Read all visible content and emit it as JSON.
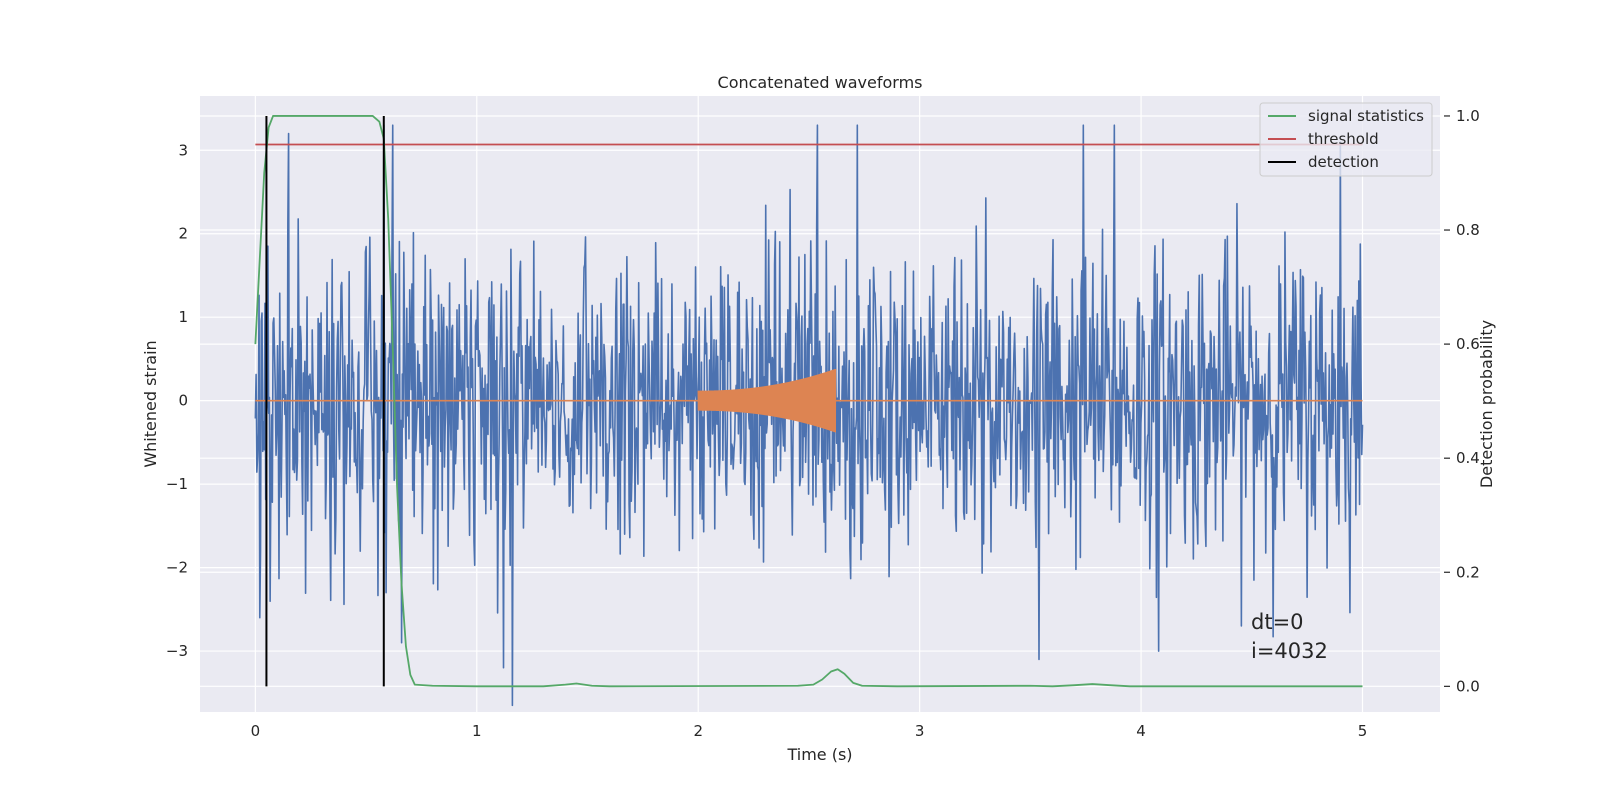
{
  "chart_data": {
    "type": "line",
    "title": "Concatenated waveforms",
    "xlabel": "Time (s)",
    "ylabel_left": "Whitened strain",
    "ylabel_right": "Detection probability",
    "xlim": [
      -0.25,
      5.35
    ],
    "ylim_left": [
      -3.73,
      3.65
    ],
    "ylim_right": [
      -0.045,
      1.035
    ],
    "xticks": [
      0,
      1,
      2,
      3,
      4,
      5
    ],
    "xtick_labels": [
      "0",
      "1",
      "2",
      "3",
      "4",
      "5"
    ],
    "yticks_left": [
      -3,
      -2,
      -1,
      0,
      1,
      2,
      3
    ],
    "ytick_labels_left": [
      "−3",
      "−2",
      "−1",
      "0",
      "1",
      "2",
      "3"
    ],
    "yticks_right": [
      0.0,
      0.2,
      0.4,
      0.6,
      0.8,
      1.0
    ],
    "ytick_labels_right": [
      "0.0",
      "0.2",
      "0.4",
      "0.6",
      "0.8",
      "1.0"
    ],
    "grid": true,
    "legend_position": "top-right",
    "legend": [
      {
        "label": "signal statistics",
        "color": "#55a868",
        "type": "line"
      },
      {
        "label": "threshold",
        "color": "#c44e52",
        "type": "line"
      },
      {
        "label": "detection",
        "color": "#000000",
        "type": "line"
      }
    ],
    "colors": {
      "noise": "#4c72b0",
      "waveform": "#dd8452",
      "signal_statistics": "#55a868",
      "threshold": "#c44e52",
      "detection": "#000000",
      "background": "#eaeaf2",
      "grid": "#ffffff"
    },
    "noise": {
      "name": "whitened strain",
      "x_range": [
        0,
        5
      ],
      "sample_count": 1500,
      "std": 0.9,
      "peaks": [
        {
          "x": 0.58,
          "y": 3.3
        },
        {
          "x": 0.59,
          "y": -2.3
        },
        {
          "x": 0.62,
          "y": 3.3
        },
        {
          "x": 0.66,
          "y": -2.9
        },
        {
          "x": 1.12,
          "y": -3.2
        },
        {
          "x": 1.16,
          "y": -3.65
        },
        {
          "x": 2.54,
          "y": 3.3
        },
        {
          "x": 2.72,
          "y": 3.3
        },
        {
          "x": 3.54,
          "y": -3.1
        },
        {
          "x": 3.74,
          "y": 3.3
        },
        {
          "x": 3.88,
          "y": 3.3
        },
        {
          "x": 4.08,
          "y": -3.0
        },
        {
          "x": 4.9,
          "y": 3.1
        },
        {
          "x": 0.15,
          "y": 3.2
        },
        {
          "x": 0.02,
          "y": -2.6
        }
      ]
    },
    "waveform": {
      "name": "injected waveform",
      "x_start": 2.0,
      "x_end": 2.62,
      "amplitude_start": 0.12,
      "amplitude_end": 0.38,
      "baseline_x_range": [
        0,
        5
      ]
    },
    "signal_statistics": {
      "axis": "right",
      "points": [
        [
          0.0,
          0.6
        ],
        [
          0.02,
          0.75
        ],
        [
          0.04,
          0.9
        ],
        [
          0.06,
          0.98
        ],
        [
          0.08,
          1.0
        ],
        [
          0.5,
          1.0
        ],
        [
          0.53,
          1.0
        ],
        [
          0.56,
          0.99
        ],
        [
          0.58,
          0.96
        ],
        [
          0.6,
          0.82
        ],
        [
          0.62,
          0.6
        ],
        [
          0.64,
          0.35
        ],
        [
          0.66,
          0.18
        ],
        [
          0.68,
          0.07
        ],
        [
          0.7,
          0.02
        ],
        [
          0.72,
          0.003
        ],
        [
          0.8,
          0.001
        ],
        [
          1.0,
          0.0
        ],
        [
          1.3,
          0.0
        ],
        [
          1.4,
          0.003
        ],
        [
          1.45,
          0.005
        ],
        [
          1.52,
          0.001
        ],
        [
          1.6,
          0.0
        ],
        [
          2.45,
          0.001
        ],
        [
          2.52,
          0.003
        ],
        [
          2.56,
          0.012
        ],
        [
          2.6,
          0.026
        ],
        [
          2.63,
          0.03
        ],
        [
          2.66,
          0.022
        ],
        [
          2.7,
          0.006
        ],
        [
          2.74,
          0.001
        ],
        [
          2.9,
          0.0
        ],
        [
          3.5,
          0.001
        ],
        [
          3.6,
          0.0
        ],
        [
          3.7,
          0.002
        ],
        [
          3.78,
          0.004
        ],
        [
          3.86,
          0.002
        ],
        [
          3.95,
          0.0
        ],
        [
          5.0,
          0.0
        ]
      ]
    },
    "threshold": {
      "axis": "right",
      "value": 0.95,
      "x_range": [
        0,
        5
      ]
    },
    "detections": [
      {
        "x": 0.05,
        "ymin": 0.0,
        "ymax": 1.0
      },
      {
        "x": 0.58,
        "ymin": 0.0,
        "ymax": 1.0
      }
    ],
    "annotation": {
      "line1": "dt=0",
      "line2": "i=4032"
    }
  }
}
